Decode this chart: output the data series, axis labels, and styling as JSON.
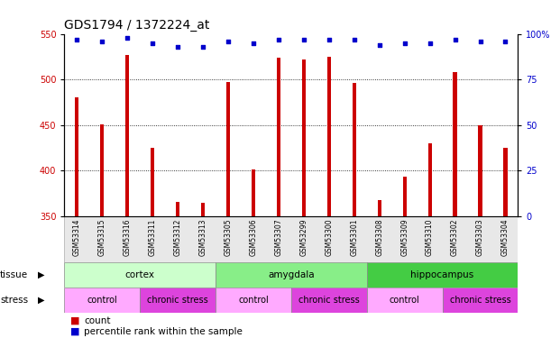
{
  "title": "GDS1794 / 1372224_at",
  "samples": [
    "GSM53314",
    "GSM53315",
    "GSM53316",
    "GSM53311",
    "GSM53312",
    "GSM53313",
    "GSM53305",
    "GSM53306",
    "GSM53307",
    "GSM53299",
    "GSM53300",
    "GSM53301",
    "GSM53308",
    "GSM53309",
    "GSM53310",
    "GSM53302",
    "GSM53303",
    "GSM53304"
  ],
  "counts": [
    480,
    451,
    527,
    425,
    366,
    365,
    497,
    401,
    524,
    522,
    525,
    496,
    368,
    393,
    430,
    508,
    450,
    425
  ],
  "percentiles": [
    97,
    96,
    98,
    95,
    93,
    93,
    96,
    95,
    97,
    97,
    97,
    97,
    94,
    95,
    95,
    97,
    96,
    96
  ],
  "ylim_left": [
    350,
    550
  ],
  "ylim_right": [
    0,
    100
  ],
  "yticks_left": [
    350,
    400,
    450,
    500,
    550
  ],
  "yticks_right": [
    0,
    25,
    50,
    75,
    100
  ],
  "bar_color": "#cc0000",
  "dot_color": "#0000cc",
  "tissue_groups": [
    {
      "label": "cortex",
      "start": 0,
      "end": 6,
      "color": "#ccffcc"
    },
    {
      "label": "amygdala",
      "start": 6,
      "end": 12,
      "color": "#88ee88"
    },
    {
      "label": "hippocampus",
      "start": 12,
      "end": 18,
      "color": "#44cc44"
    }
  ],
  "stress_groups": [
    {
      "label": "control",
      "start": 0,
      "end": 3,
      "color": "#ffaaff"
    },
    {
      "label": "chronic stress",
      "start": 3,
      "end": 6,
      "color": "#dd44dd"
    },
    {
      "label": "control",
      "start": 6,
      "end": 9,
      "color": "#ffaaff"
    },
    {
      "label": "chronic stress",
      "start": 9,
      "end": 12,
      "color": "#dd44dd"
    },
    {
      "label": "control",
      "start": 12,
      "end": 15,
      "color": "#ffaaff"
    },
    {
      "label": "chronic stress",
      "start": 15,
      "end": 18,
      "color": "#dd44dd"
    }
  ],
  "grid_color": "#000000",
  "background_color": "#ffffff",
  "tick_fontsize": 7,
  "title_fontsize": 10,
  "bar_width": 0.15
}
